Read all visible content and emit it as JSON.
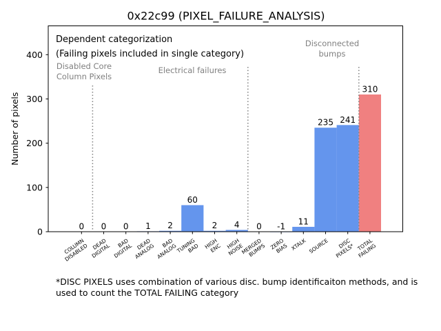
{
  "chart_data": {
    "type": "bar",
    "title": "0x22c99 (PIXEL_FAILURE_ANALYSIS)",
    "xlabel": "",
    "ylabel": "Number of pixels",
    "ylim": [
      0,
      465
    ],
    "yticks": [
      0,
      100,
      200,
      300,
      400
    ],
    "grid": false,
    "categories": [
      "COLUMN\nDISABLED",
      "DEAD\nDIGITAL",
      "BAD\nDIGITAL",
      "DEAD\nANALOG",
      "BAD\nANALOG",
      "TUNING\nBAD",
      "HIGH\nENC",
      "HIGH\nNOISE",
      "MERGED\nBUMPS",
      "ZERO\nBIAS",
      "XTALK",
      "SOURCE",
      "DISC\nPIXELS*",
      "TOTAL\nFAILING"
    ],
    "values": [
      0,
      0,
      0,
      1,
      2,
      60,
      2,
      4,
      0,
      -1,
      11,
      235,
      241,
      310
    ],
    "data_labels": [
      "0",
      "0",
      "0",
      "1",
      "2",
      "60",
      "2",
      "4",
      "0",
      "-1",
      "11",
      "235",
      "241",
      "310"
    ],
    "colors": {
      "default": "#6495ed",
      "total": "#f08080",
      "divider": "#808080",
      "annotation": "#808080",
      "text": "#000000"
    },
    "annotations": {
      "header_line1": "Dependent categorization",
      "header_line2": "(Failing pixels included in single category)",
      "group_disabled": "Disabled Core\nColumn Pixels",
      "group_electrical": "Electrical failures",
      "group_disconnected": "Disconnected\nbumps"
    },
    "dividers_after": [
      0,
      7,
      12
    ]
  },
  "footnote": "*DISC PIXELS uses combination of various disc. bump identificaiton methods, and is used to count the TOTAL FAILING category"
}
